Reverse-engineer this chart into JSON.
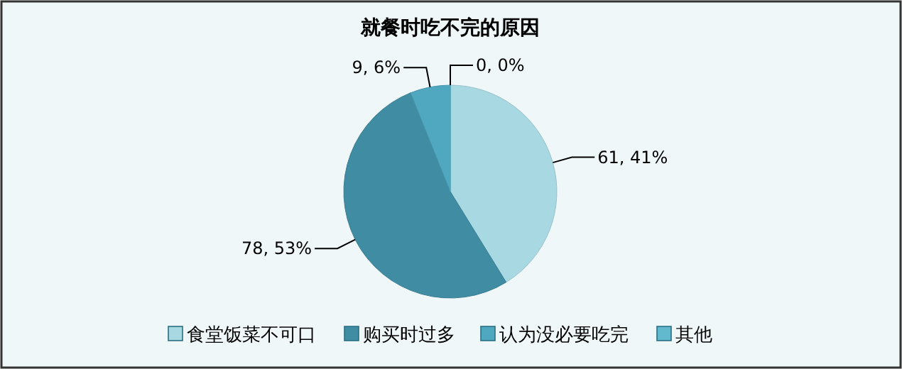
{
  "chart_data": {
    "type": "pie",
    "title": "就餐时吃不完的原因",
    "categories": [
      "食堂饭菜不可口",
      "购买时过多",
      "认为没必要吃完",
      "其他"
    ],
    "values": [
      61,
      78,
      9,
      0
    ],
    "colors": [
      "#a8d8e2",
      "#3f8ca3",
      "#4fa8c0",
      "#62b8cc"
    ],
    "value_labels": [
      "61, 41%",
      "78, 53%",
      "9, 6%",
      "0, 0%"
    ],
    "legend": "bottom"
  }
}
